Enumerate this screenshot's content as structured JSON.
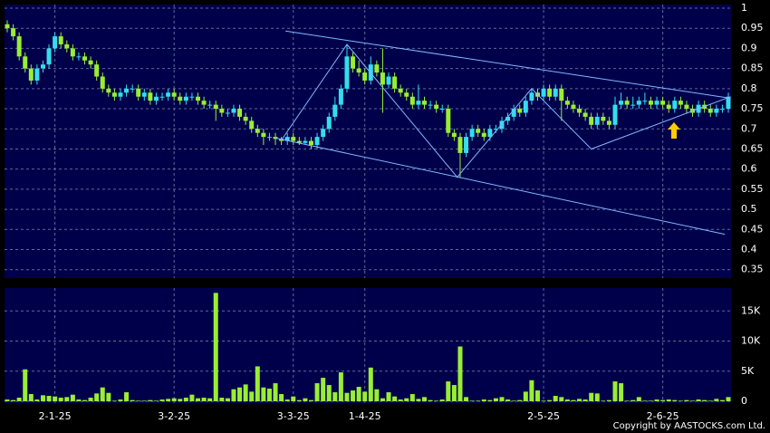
{
  "chart_data": {
    "type": "candlestick",
    "categories": [
      null,
      null,
      null,
      null,
      null,
      null,
      null,
      null,
      "2-1-25",
      null,
      null,
      null,
      null,
      null,
      null,
      null,
      null,
      null,
      null,
      null,
      null,
      null,
      null,
      null,
      null,
      null,
      null,
      null,
      "3-2-25",
      null,
      null,
      null,
      null,
      null,
      null,
      null,
      null,
      null,
      null,
      null,
      null,
      null,
      null,
      null,
      null,
      null,
      null,
      null,
      "3-3-25",
      null,
      null,
      null,
      null,
      null,
      null,
      null,
      null,
      null,
      null,
      null,
      "1-4-25",
      null,
      null,
      null,
      null,
      null,
      null,
      null,
      null,
      null,
      null,
      null,
      null,
      null,
      null,
      null,
      null,
      null,
      null,
      null,
      null,
      null,
      null,
      null,
      null,
      null,
      null,
      null,
      null,
      null,
      "2-5-25",
      null,
      null,
      null,
      null,
      null,
      null,
      null,
      null,
      null,
      null,
      null,
      null,
      null,
      null,
      null,
      null,
      null,
      null,
      null,
      "2-6-25",
      null,
      null,
      null,
      null,
      null,
      null,
      null,
      null,
      null,
      null,
      null
    ],
    "ohlc": [
      [
        0.96,
        0.97,
        0.94,
        0.95
      ],
      [
        0.95,
        0.96,
        0.92,
        0.93
      ],
      [
        0.93,
        0.94,
        0.87,
        0.88
      ],
      [
        0.88,
        0.89,
        0.84,
        0.85
      ],
      [
        0.85,
        0.86,
        0.81,
        0.82
      ],
      [
        0.82,
        0.86,
        0.81,
        0.85
      ],
      [
        0.85,
        0.87,
        0.84,
        0.86
      ],
      [
        0.86,
        0.91,
        0.85,
        0.9
      ],
      [
        0.9,
        0.94,
        0.89,
        0.93
      ],
      [
        0.93,
        0.94,
        0.9,
        0.91
      ],
      [
        0.91,
        0.92,
        0.89,
        0.9
      ],
      [
        0.9,
        0.91,
        0.87,
        0.88
      ],
      [
        0.88,
        0.89,
        0.87,
        0.88
      ],
      [
        0.88,
        0.89,
        0.86,
        0.87
      ],
      [
        0.87,
        0.88,
        0.85,
        0.86
      ],
      [
        0.86,
        0.87,
        0.82,
        0.83
      ],
      [
        0.83,
        0.84,
        0.79,
        0.8
      ],
      [
        0.8,
        0.81,
        0.78,
        0.79
      ],
      [
        0.79,
        0.8,
        0.77,
        0.78
      ],
      [
        0.78,
        0.8,
        0.77,
        0.79
      ],
      [
        0.79,
        0.81,
        0.78,
        0.8
      ],
      [
        0.8,
        0.81,
        0.79,
        0.8
      ],
      [
        0.8,
        0.81,
        0.77,
        0.78
      ],
      [
        0.78,
        0.8,
        0.77,
        0.79
      ],
      [
        0.79,
        0.8,
        0.76,
        0.77
      ],
      [
        0.77,
        0.79,
        0.76,
        0.78
      ],
      [
        0.78,
        0.79,
        0.77,
        0.78
      ],
      [
        0.78,
        0.8,
        0.77,
        0.79
      ],
      [
        0.79,
        0.8,
        0.77,
        0.78
      ],
      [
        0.78,
        0.79,
        0.76,
        0.77
      ],
      [
        0.77,
        0.79,
        0.76,
        0.78
      ],
      [
        0.78,
        0.79,
        0.77,
        0.78
      ],
      [
        0.78,
        0.79,
        0.76,
        0.77
      ],
      [
        0.77,
        0.78,
        0.75,
        0.76
      ],
      [
        0.76,
        0.77,
        0.75,
        0.76
      ],
      [
        0.76,
        0.77,
        0.72,
        0.75
      ],
      [
        0.75,
        0.76,
        0.73,
        0.74
      ],
      [
        0.74,
        0.75,
        0.73,
        0.74
      ],
      [
        0.74,
        0.76,
        0.73,
        0.75
      ],
      [
        0.75,
        0.76,
        0.72,
        0.73
      ],
      [
        0.73,
        0.74,
        0.71,
        0.72
      ],
      [
        0.72,
        0.73,
        0.69,
        0.7
      ],
      [
        0.7,
        0.71,
        0.68,
        0.69
      ],
      [
        0.69,
        0.7,
        0.66,
        0.68
      ],
      [
        0.68,
        0.69,
        0.67,
        0.68
      ],
      [
        0.68,
        0.69,
        0.66,
        0.675
      ],
      [
        0.675,
        0.68,
        0.66,
        0.67
      ],
      [
        0.67,
        0.69,
        0.66,
        0.68
      ],
      [
        0.68,
        0.69,
        0.66,
        0.67
      ],
      [
        0.67,
        0.68,
        0.66,
        0.665
      ],
      [
        0.665,
        0.68,
        0.66,
        0.67
      ],
      [
        0.67,
        0.68,
        0.65,
        0.66
      ],
      [
        0.66,
        0.69,
        0.65,
        0.68
      ],
      [
        0.68,
        0.71,
        0.67,
        0.7
      ],
      [
        0.7,
        0.74,
        0.69,
        0.73
      ],
      [
        0.73,
        0.78,
        0.72,
        0.76
      ],
      [
        0.76,
        0.81,
        0.75,
        0.8
      ],
      [
        0.8,
        0.91,
        0.79,
        0.88
      ],
      [
        0.88,
        0.89,
        0.84,
        0.85
      ],
      [
        0.85,
        0.87,
        0.83,
        0.84
      ],
      [
        0.84,
        0.85,
        0.81,
        0.82
      ],
      [
        0.82,
        0.88,
        0.81,
        0.86
      ],
      [
        0.86,
        0.87,
        0.83,
        0.84
      ],
      [
        0.84,
        0.9,
        0.74,
        0.81
      ],
      [
        0.81,
        0.84,
        0.8,
        0.83
      ],
      [
        0.83,
        0.84,
        0.79,
        0.8
      ],
      [
        0.8,
        0.81,
        0.78,
        0.79
      ],
      [
        0.79,
        0.8,
        0.77,
        0.78
      ],
      [
        0.78,
        0.79,
        0.75,
        0.76
      ],
      [
        0.76,
        0.81,
        0.75,
        0.77
      ],
      [
        0.77,
        0.78,
        0.75,
        0.76
      ],
      [
        0.76,
        0.77,
        0.75,
        0.76
      ],
      [
        0.76,
        0.77,
        0.74,
        0.75
      ],
      [
        0.75,
        0.76,
        0.74,
        0.75
      ],
      [
        0.75,
        0.76,
        0.68,
        0.69
      ],
      [
        0.69,
        0.7,
        0.67,
        0.68
      ],
      [
        0.68,
        0.69,
        0.58,
        0.64
      ],
      [
        0.64,
        0.69,
        0.63,
        0.68
      ],
      [
        0.68,
        0.71,
        0.67,
        0.7
      ],
      [
        0.7,
        0.71,
        0.68,
        0.69
      ],
      [
        0.69,
        0.7,
        0.67,
        0.68
      ],
      [
        0.68,
        0.71,
        0.67,
        0.7
      ],
      [
        0.7,
        0.71,
        0.69,
        0.7
      ],
      [
        0.7,
        0.73,
        0.69,
        0.72
      ],
      [
        0.72,
        0.74,
        0.71,
        0.73
      ],
      [
        0.73,
        0.76,
        0.72,
        0.75
      ],
      [
        0.75,
        0.76,
        0.73,
        0.74
      ],
      [
        0.74,
        0.78,
        0.73,
        0.77
      ],
      [
        0.77,
        0.8,
        0.76,
        0.79
      ],
      [
        0.79,
        0.8,
        0.77,
        0.78
      ],
      [
        0.78,
        0.81,
        0.77,
        0.8
      ],
      [
        0.8,
        0.81,
        0.77,
        0.78
      ],
      [
        0.78,
        0.81,
        0.77,
        0.8
      ],
      [
        0.8,
        0.81,
        0.72,
        0.77
      ],
      [
        0.77,
        0.78,
        0.75,
        0.76
      ],
      [
        0.76,
        0.77,
        0.74,
        0.75
      ],
      [
        0.75,
        0.76,
        0.73,
        0.74
      ],
      [
        0.74,
        0.75,
        0.72,
        0.73
      ],
      [
        0.73,
        0.74,
        0.7,
        0.71
      ],
      [
        0.71,
        0.74,
        0.7,
        0.73
      ],
      [
        0.73,
        0.74,
        0.71,
        0.72
      ],
      [
        0.72,
        0.73,
        0.7,
        0.71
      ],
      [
        0.71,
        0.78,
        0.7,
        0.76
      ],
      [
        0.76,
        0.79,
        0.75,
        0.77
      ],
      [
        0.77,
        0.78,
        0.75,
        0.76
      ],
      [
        0.76,
        0.78,
        0.75,
        0.76
      ],
      [
        0.76,
        0.78,
        0.75,
        0.77
      ],
      [
        0.77,
        0.79,
        0.76,
        0.77
      ],
      [
        0.77,
        0.78,
        0.75,
        0.76
      ],
      [
        0.76,
        0.78,
        0.75,
        0.77
      ],
      [
        0.77,
        0.78,
        0.75,
        0.76
      ],
      [
        0.76,
        0.77,
        0.74,
        0.75
      ],
      [
        0.75,
        0.78,
        0.74,
        0.77
      ],
      [
        0.77,
        0.78,
        0.75,
        0.76
      ],
      [
        0.76,
        0.77,
        0.74,
        0.75
      ],
      [
        0.75,
        0.76,
        0.73,
        0.74
      ],
      [
        0.74,
        0.77,
        0.73,
        0.76
      ],
      [
        0.76,
        0.77,
        0.74,
        0.75
      ],
      [
        0.75,
        0.76,
        0.73,
        0.74
      ],
      [
        0.74,
        0.76,
        0.73,
        0.75
      ],
      [
        0.75,
        0.76,
        0.74,
        0.75
      ],
      [
        0.75,
        0.79,
        0.74,
        0.78
      ]
    ],
    "up_color": "#33ddee",
    "down_color": "#99ee33",
    "ylim": [
      0.33,
      1.0
    ],
    "yticks": [
      1,
      0.95,
      0.9,
      0.85,
      0.8,
      0.75,
      0.7,
      0.65,
      0.6,
      0.55,
      0.5,
      0.45,
      0.4,
      0.35
    ],
    "trendlines": [
      {
        "x": [
          46.7,
          121.4
        ],
        "y": [
          0.943,
          0.776
        ]
      },
      {
        "x": [
          45.1,
          120.4
        ],
        "y": [
          0.677,
          0.438
        ]
      },
      {
        "x": [
          45.9,
          57,
          75.5,
          88,
          98,
          121.4
        ],
        "y": [
          0.67,
          0.91,
          0.58,
          0.8,
          0.65,
          0.78
        ]
      }
    ],
    "trendline_color": "#80b8ff",
    "volume": {
      "color": "#99ee33",
      "values": [
        300,
        200,
        600,
        5300,
        1200,
        300,
        1000,
        900,
        800,
        600,
        700,
        1100,
        300,
        200,
        600,
        1300,
        2300,
        1400,
        100,
        300,
        1500,
        200,
        100,
        100,
        200,
        100,
        300,
        400,
        500,
        400,
        600,
        1100,
        500,
        600,
        500,
        18000,
        600,
        500,
        2000,
        2300,
        2800,
        1600,
        5800,
        2300,
        2100,
        3000,
        1200,
        300,
        800,
        200,
        500,
        200,
        3000,
        3900,
        2700,
        1500,
        4800,
        1400,
        1800,
        2400,
        1600,
        5600,
        2000,
        500,
        1500,
        800,
        300,
        500,
        1200,
        400,
        700,
        200,
        100,
        300,
        3300,
        2700,
        9100,
        700,
        100,
        100,
        300,
        200,
        500,
        700,
        300,
        100,
        200,
        1600,
        3500,
        1800,
        100,
        200,
        900,
        700,
        300,
        200,
        400,
        300,
        1400,
        1300,
        100,
        200,
        3300,
        3000,
        100,
        200,
        700,
        100,
        100,
        300,
        200,
        300,
        200,
        100,
        200,
        100,
        300,
        200,
        100,
        400,
        200,
        700
      ],
      "ylim": [
        0,
        18800
      ],
      "yticks": [
        0,
        {
          "value": 5000,
          "label": "5K"
        },
        {
          "value": 10000,
          "label": "10K"
        },
        {
          "value": 15000,
          "label": "15K"
        }
      ]
    },
    "grid": true,
    "copyright": "Copyright by AASTOCKS.com Ltd."
  }
}
